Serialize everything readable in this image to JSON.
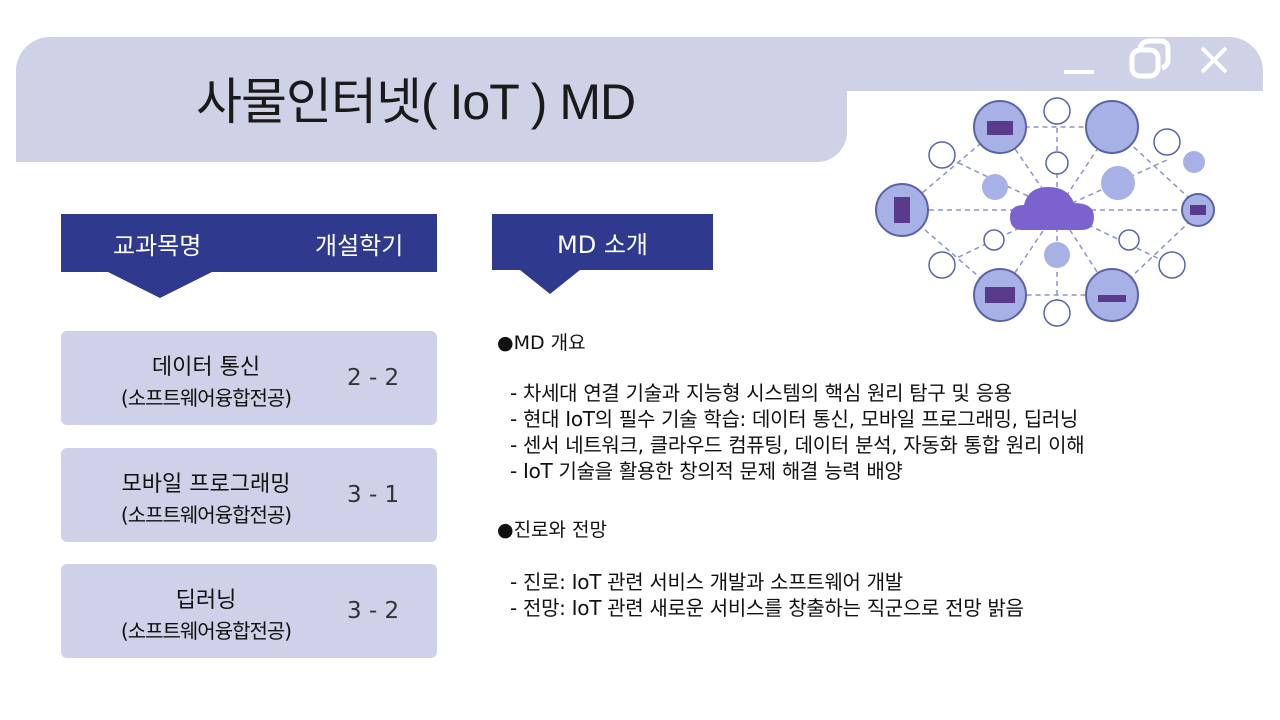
{
  "title": "사물인터넷( IoT )  MD",
  "window_controls": {
    "minimize": "minimize-icon",
    "restore": "restore-icon",
    "close": "close-icon"
  },
  "course_header": {
    "name_label": "교과목명",
    "semester_label": "개설학기"
  },
  "md_header": {
    "label": "MD 소개"
  },
  "courses": [
    {
      "name": "데이터 통신",
      "dept": "(소프트웨어융합전공)",
      "semester": "2 - 2"
    },
    {
      "name": "모바일 프로그래밍",
      "dept": "(소프트웨어융합전공)",
      "semester": "3 - 1"
    },
    {
      "name": "딥러닝",
      "dept": "(소프트웨어융합전공)",
      "semester": "3 - 2"
    }
  ],
  "overview": {
    "heading": "●MD 개요",
    "items": [
      "- 차세대 연결 기술과 지능형 시스템의 핵심 원리 탐구 및 응용",
      "- 현대 IoT의 필수 기술 학습: 데이터 통신, 모바일 프로그래밍, 딥러닝",
      "- 센서 네트워크, 클라우드 컴퓨팅, 데이터 분석, 자동화 통합 원리 이해",
      "- IoT 기술을 활용한 창의적 문제 해결 능력 배양"
    ]
  },
  "career": {
    "heading": "●진로와 전망",
    "items": [
      "- 진로: IoT 관련 서비스 개발과 소프트웨어 개발",
      "- 전망: IoT 관련 새로운 서비스를 창출하는 직군으로 전망 밝음"
    ]
  },
  "colors": {
    "band": "#cfd1e6",
    "header": "#2f3a8f",
    "card": "#cfd1e8"
  }
}
